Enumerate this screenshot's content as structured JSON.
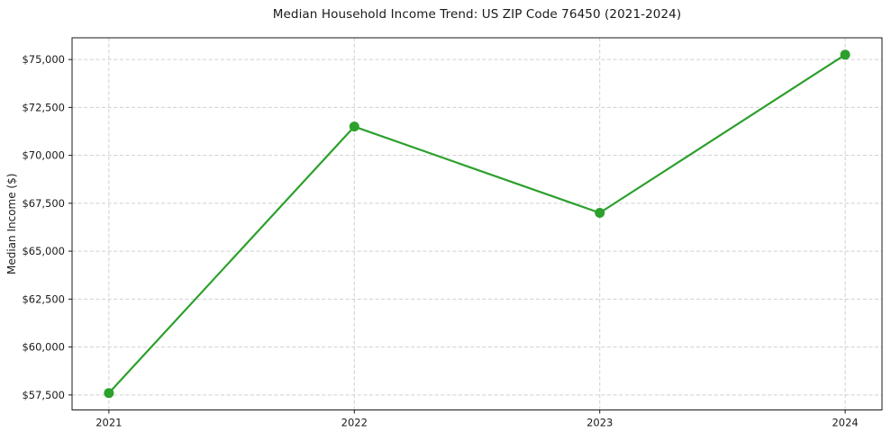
{
  "chart_data": {
    "type": "line",
    "title": "Median Household Income Trend: US ZIP Code 76450 (2021-2024)",
    "xlabel": "",
    "ylabel": "Median Income ($)",
    "x": [
      2021,
      2022,
      2023,
      2024
    ],
    "x_labels": [
      "2021",
      "2022",
      "2023",
      "2024"
    ],
    "series": [
      {
        "name": "Median Household Income",
        "values": [
          57600,
          71500,
          67000,
          75250
        ]
      }
    ],
    "ytick_values": [
      57500,
      60000,
      62500,
      65000,
      67500,
      70000,
      72500,
      75000
    ],
    "ytick_labels": [
      "$57,500",
      "$60,000",
      "$62,500",
      "$65,000",
      "$67,500",
      "$70,000",
      "$72,500",
      "$75,000"
    ],
    "xlim": [
      2020.85,
      2024.15
    ],
    "ylim": [
      56717,
      76133
    ],
    "grid": true,
    "grid_style": "dashed",
    "legend_position": "none",
    "line_color": "#2ca02c",
    "marker": "circle",
    "marker_color": "#2ca02c",
    "grid_color": "#cfcfcf",
    "spine_color": "#1a1a1a",
    "background_color": "#ffffff"
  }
}
